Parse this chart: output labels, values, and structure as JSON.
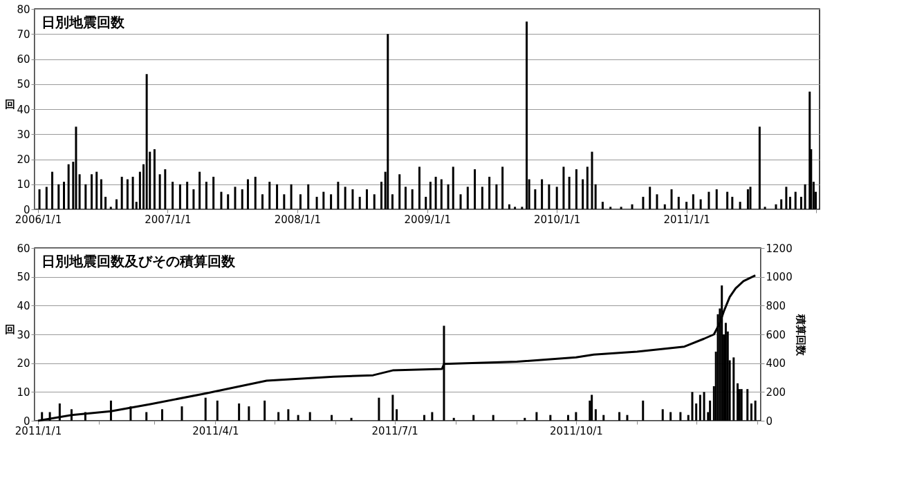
{
  "chart_data": [
    {
      "type": "bar",
      "title": "日別地震回数",
      "ylabel": "回",
      "color": "#000000",
      "grid": "y",
      "xlim": [
        "2006-01-01",
        "2012-01-01"
      ],
      "xticks": [
        {
          "value": "2006-01-01",
          "label": "2006/1/1"
        },
        {
          "value": "2007-01-01",
          "label": "2007/1/1"
        },
        {
          "value": "2008-01-01",
          "label": "2008/1/1"
        },
        {
          "value": "2009-01-01",
          "label": "2009/1/1"
        },
        {
          "value": "2010-01-01",
          "label": "2010/1/1"
        },
        {
          "value": "2011-01-01",
          "label": "2011/1/1"
        },
        {
          "value": "2012-01-01",
          "label": null
        }
      ],
      "ylim": [
        0,
        80
      ],
      "yticks": [
        0,
        10,
        20,
        30,
        40,
        50,
        60,
        70,
        80
      ],
      "x": [
        "2006-01-05",
        "2006-01-25",
        "2006-02-10",
        "2006-02-28",
        "2006-03-15",
        "2006-03-28",
        "2006-04-10",
        "2006-04-18",
        "2006-04-28",
        "2006-05-15",
        "2006-06-01",
        "2006-06-15",
        "2006-06-28",
        "2006-07-10",
        "2006-07-25",
        "2006-08-10",
        "2006-08-25",
        "2006-09-10",
        "2006-09-25",
        "2006-10-05",
        "2006-10-15",
        "2006-10-25",
        "2006-11-03",
        "2006-11-12",
        "2006-11-25",
        "2006-12-10",
        "2006-12-25",
        "2007-01-15",
        "2007-02-05",
        "2007-02-25",
        "2007-03-15",
        "2007-04-01",
        "2007-04-20",
        "2007-05-10",
        "2007-06-01",
        "2007-06-20",
        "2007-07-10",
        "2007-07-30",
        "2007-08-15",
        "2007-09-05",
        "2007-09-25",
        "2007-10-15",
        "2007-11-05",
        "2007-11-25",
        "2007-12-15",
        "2008-01-10",
        "2008-02-01",
        "2008-02-25",
        "2008-03-15",
        "2008-04-05",
        "2008-04-25",
        "2008-05-15",
        "2008-06-05",
        "2008-06-25",
        "2008-07-15",
        "2008-08-05",
        "2008-08-25",
        "2008-09-05",
        "2008-09-12",
        "2008-09-25",
        "2008-10-15",
        "2008-11-01",
        "2008-11-20",
        "2008-12-10",
        "2008-12-28",
        "2009-01-10",
        "2009-01-25",
        "2009-02-10",
        "2009-03-01",
        "2009-03-15",
        "2009-04-05",
        "2009-04-25",
        "2009-05-15",
        "2009-06-05",
        "2009-06-25",
        "2009-07-15",
        "2009-08-01",
        "2009-08-20",
        "2009-09-05",
        "2009-09-25",
        "2009-10-08",
        "2009-10-15",
        "2009-11-01",
        "2009-11-20",
        "2009-12-10",
        "2010-01-01",
        "2010-01-20",
        "2010-02-05",
        "2010-02-25",
        "2010-03-15",
        "2010-03-28",
        "2010-04-10",
        "2010-04-20",
        "2010-05-10",
        "2010-06-01",
        "2010-07-01",
        "2010-08-01",
        "2010-09-01",
        "2010-09-20",
        "2010-10-10",
        "2010-11-01",
        "2010-11-20",
        "2010-12-10",
        "2011-01-01",
        "2011-01-20",
        "2011-02-10",
        "2011-03-05",
        "2011-03-27",
        "2011-04-26",
        "2011-05-10",
        "2011-06-01",
        "2011-06-23",
        "2011-06-30",
        "2011-07-26",
        "2011-08-10",
        "2011-09-10",
        "2011-09-25",
        "2011-10-09",
        "2011-10-20",
        "2011-11-04",
        "2011-11-20",
        "2011-12-01",
        "2011-12-14",
        "2011-12-18",
        "2011-12-25",
        "2011-12-31"
      ],
      "values": [
        8,
        9,
        15,
        10,
        11,
        18,
        19,
        33,
        14,
        10,
        14,
        15,
        12,
        5,
        1,
        4,
        13,
        12,
        13,
        3,
        15,
        18,
        54,
        23,
        24,
        14,
        16,
        11,
        10,
        11,
        8,
        15,
        11,
        13,
        7,
        6,
        9,
        8,
        12,
        13,
        6,
        11,
        10,
        6,
        10,
        6,
        10,
        5,
        7,
        6,
        11,
        9,
        8,
        5,
        8,
        6,
        11,
        15,
        70,
        6,
        14,
        9,
        8,
        17,
        5,
        11,
        13,
        12,
        10,
        17,
        6,
        9,
        16,
        9,
        13,
        10,
        17,
        2,
        1,
        1,
        75,
        12,
        8,
        12,
        10,
        9,
        17,
        13,
        16,
        12,
        17,
        23,
        10,
        3,
        1,
        1,
        2,
        5,
        9,
        6,
        2,
        8,
        5,
        3,
        6,
        4,
        7,
        8,
        7,
        5,
        3,
        8,
        9,
        33,
        1,
        2,
        4,
        9,
        5,
        7,
        5,
        10,
        47,
        24,
        11,
        7
      ]
    },
    {
      "type": "bar",
      "title": "日別地震回数及びその積算回数",
      "ylabel": "回",
      "y2label": "積算回数",
      "grid": "y",
      "xlim": [
        "2011-01-01",
        "2012-01-01"
      ],
      "xticks": [
        {
          "value": "2011-01-01",
          "label": "2011/1/1"
        },
        {
          "value": "2011-02-01",
          "label": null
        },
        {
          "value": "2011-03-01",
          "label": null
        },
        {
          "value": "2011-04-01",
          "label": "2011/4/1"
        },
        {
          "value": "2011-05-01",
          "label": null
        },
        {
          "value": "2011-06-01",
          "label": null
        },
        {
          "value": "2011-07-01",
          "label": "2011/7/1"
        },
        {
          "value": "2011-08-01",
          "label": null
        },
        {
          "value": "2011-09-01",
          "label": null
        },
        {
          "value": "2011-10-01",
          "label": "2011/10/1"
        },
        {
          "value": "2011-11-01",
          "label": null
        },
        {
          "value": "2011-12-01",
          "label": null
        },
        {
          "value": "2012-01-01",
          "label": null
        }
      ],
      "ylim": [
        0,
        60
      ],
      "yticks": [
        0,
        10,
        20,
        30,
        40,
        50,
        60
      ],
      "y2lim": [
        0,
        1200
      ],
      "y2ticks": [
        0,
        200,
        400,
        600,
        800,
        1000,
        1200
      ],
      "series": [
        {
          "type": "bar",
          "color": "#000000",
          "x": [
            "2011-01-03",
            "2011-01-07",
            "2011-01-12",
            "2011-01-18",
            "2011-01-25",
            "2011-02-07",
            "2011-02-17",
            "2011-02-25",
            "2011-03-05",
            "2011-03-15",
            "2011-03-27",
            "2011-04-02",
            "2011-04-13",
            "2011-04-18",
            "2011-04-26",
            "2011-05-03",
            "2011-05-08",
            "2011-05-13",
            "2011-05-19",
            "2011-05-30",
            "2011-06-09",
            "2011-06-23",
            "2011-06-30",
            "2011-07-02",
            "2011-07-16",
            "2011-07-20",
            "2011-07-26",
            "2011-07-31",
            "2011-08-10",
            "2011-08-20",
            "2011-09-05",
            "2011-09-11",
            "2011-09-18",
            "2011-09-27",
            "2011-10-01",
            "2011-10-08",
            "2011-10-09",
            "2011-10-11",
            "2011-10-15",
            "2011-10-23",
            "2011-10-27",
            "2011-11-04",
            "2011-11-14",
            "2011-11-18",
            "2011-11-23",
            "2011-11-27",
            "2011-11-29",
            "2011-12-01",
            "2011-12-03",
            "2011-12-05",
            "2011-12-07",
            "2011-12-08",
            "2011-12-10",
            "2011-12-11",
            "2011-12-12",
            "2011-12-13",
            "2011-12-14",
            "2011-12-15",
            "2011-12-16",
            "2011-12-17",
            "2011-12-18",
            "2011-12-20",
            "2011-12-22",
            "2011-12-23",
            "2011-12-24",
            "2011-12-27",
            "2011-12-29",
            "2011-12-31"
          ],
          "values": [
            3,
            3,
            6,
            4,
            3,
            7,
            5,
            3,
            4,
            5,
            8,
            7,
            6,
            5,
            7,
            3,
            4,
            2,
            3,
            2,
            1,
            8,
            9,
            4,
            2,
            3,
            33,
            1,
            2,
            2,
            1,
            3,
            2,
            2,
            3,
            7,
            9,
            4,
            2,
            3,
            2,
            7,
            4,
            3,
            3,
            2,
            10,
            6,
            9,
            10,
            3,
            7,
            12,
            24,
            37,
            39,
            47,
            30,
            34,
            31,
            21,
            22,
            13,
            11,
            11,
            11,
            6,
            7
          ]
        },
        {
          "type": "line",
          "axis": "y2",
          "color": "#000000",
          "x": [
            "2011-01-01",
            "2011-01-18",
            "2011-02-07",
            "2011-02-27",
            "2011-03-27",
            "2011-04-27",
            "2011-05-31",
            "2011-06-20",
            "2011-06-30",
            "2011-07-25",
            "2011-07-26",
            "2011-09-01",
            "2011-10-01",
            "2011-10-10",
            "2011-11-01",
            "2011-11-25",
            "2011-12-05",
            "2011-12-10",
            "2011-12-13",
            "2011-12-15",
            "2011-12-18",
            "2011-12-21",
            "2011-12-25",
            "2011-12-31"
          ],
          "values": [
            0,
            40,
            66,
            115,
            190,
            278,
            306,
            316,
            350,
            360,
            395,
            410,
            440,
            460,
            480,
            515,
            570,
            600,
            680,
            760,
            860,
            920,
            970,
            1010
          ]
        }
      ]
    }
  ]
}
